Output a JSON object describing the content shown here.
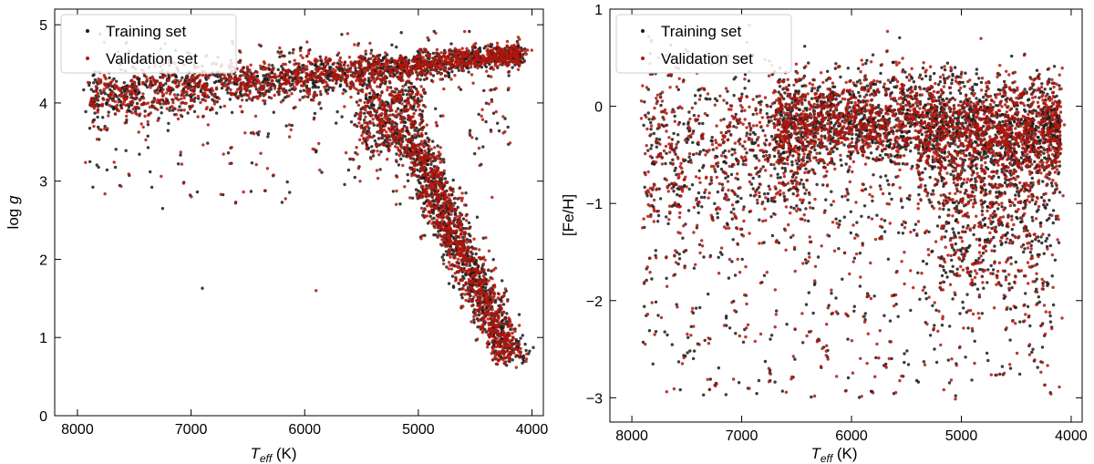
{
  "figure": {
    "background": "#ffffff"
  },
  "chart_data": [
    {
      "type": "scatter",
      "panel": "left",
      "title": "",
      "xlabel_main": "T",
      "xlabel_sub": "eff",
      "xlabel_unit": " (K)",
      "ylabel_main": "log ",
      "ylabel_italic": "g",
      "xlim": [
        8200,
        3900
      ],
      "ylim": [
        5.2,
        0
      ],
      "x_ticks": [
        8000,
        7000,
        6000,
        5000,
        4000
      ],
      "x_tick_labels": [
        "8000",
        "7000",
        "6000",
        "5000",
        "4000"
      ],
      "y_ticks": [
        0,
        1,
        2,
        3,
        4,
        5
      ],
      "y_tick_labels": [
        "0",
        "1",
        "2",
        "3",
        "4",
        "5"
      ],
      "grid": false,
      "legend_position": "top-left",
      "series": [
        {
          "name": "Training set",
          "color": "#1a1a1a"
        },
        {
          "name": "Validation set",
          "color": "#b0160d"
        }
      ],
      "density_regions": [
        {
          "desc": "main sequence",
          "teff": [
            4100,
            7900
          ],
          "logg_center_hot": 4.05,
          "logg_center_cool": 4.62
        },
        {
          "desc": "subgiant branch",
          "teff": [
            4950,
            5500
          ],
          "logg": [
            3.4,
            4.2
          ]
        },
        {
          "desc": "red giant branch",
          "teff": [
            4100,
            5050
          ],
          "logg": [
            0.6,
            3.5
          ]
        }
      ],
      "highlighted_points": [
        {
          "x": 6900,
          "y": 1.63,
          "series": "Training set"
        },
        {
          "x": 7250,
          "y": 2.65,
          "series": "Training set"
        },
        {
          "x": 5900,
          "y": 1.6,
          "series": "Validation set"
        },
        {
          "x": 5150,
          "y": 4.9,
          "series": "Training set"
        }
      ]
    },
    {
      "type": "scatter",
      "panel": "right",
      "title": "",
      "xlabel_main": "T",
      "xlabel_sub": "eff",
      "xlabel_unit": " (K)",
      "ylabel": "[Fe/H]",
      "xlim": [
        8200,
        3900
      ],
      "ylim": [
        1.0,
        -3.25
      ],
      "x_ticks": [
        8000,
        7000,
        6000,
        5000,
        4000
      ],
      "x_tick_labels": [
        "8000",
        "7000",
        "6000",
        "5000",
        "4000"
      ],
      "y_ticks": [
        -3,
        -2,
        -1,
        0,
        1
      ],
      "y_tick_labels": [
        "−3",
        "−2",
        "−1",
        "0",
        "1"
      ],
      "grid": false,
      "legend_position": "top-left",
      "series": [
        {
          "name": "Training set",
          "color": "#1a1a1a"
        },
        {
          "name": "Validation set",
          "color": "#b0160d"
        }
      ],
      "density_regions": [
        {
          "desc": "main cloud",
          "teff": [
            4100,
            6500
          ],
          "feh": [
            -0.8,
            0.6
          ]
        },
        {
          "desc": "metal-poor tail",
          "teff": [
            4100,
            7900
          ],
          "feh": [
            -3.0,
            -0.8
          ]
        }
      ]
    }
  ]
}
